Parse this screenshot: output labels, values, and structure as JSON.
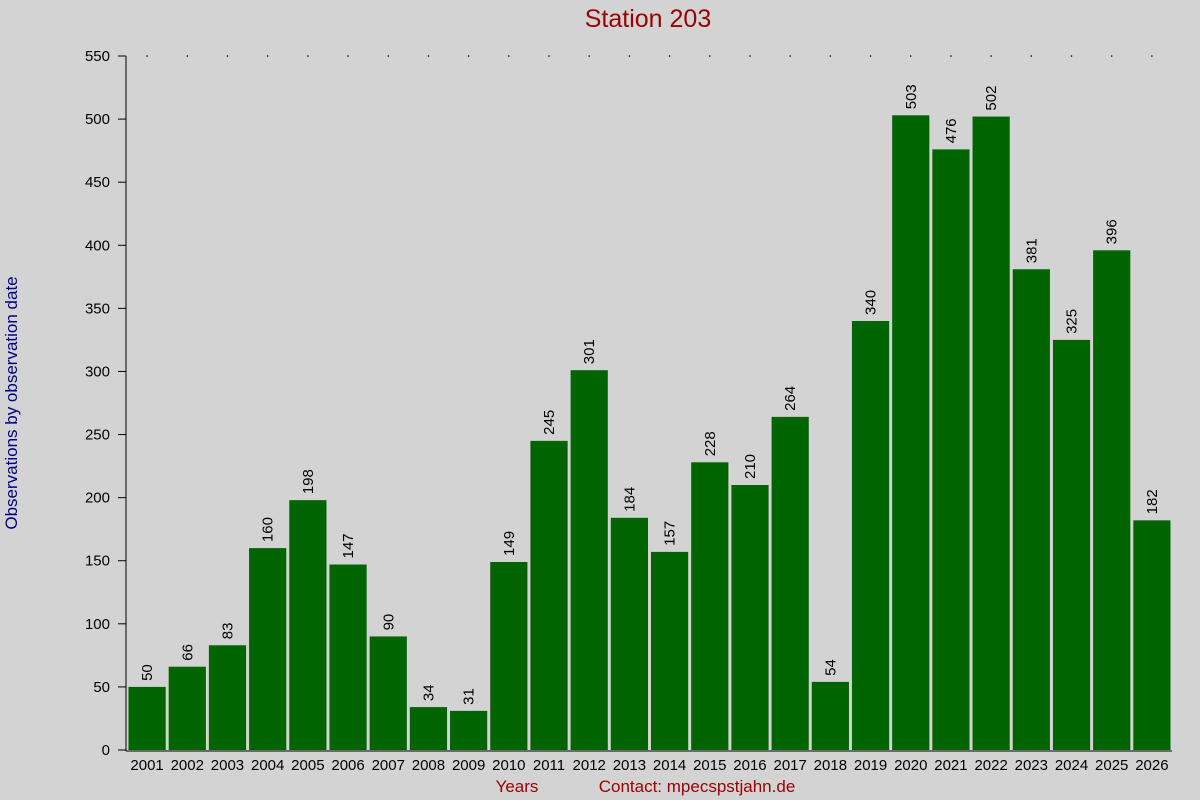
{
  "chart_data": {
    "type": "bar",
    "title": "Station 203",
    "y_label": "Observations by observation date",
    "x_label": "Years",
    "contact": "Contact: mpecspstjahn.de",
    "categories": [
      "2001",
      "2002",
      "2003",
      "2004",
      "2005",
      "2006",
      "2007",
      "2008",
      "2009",
      "2010",
      "2011",
      "2012",
      "2013",
      "2014",
      "2015",
      "2016",
      "2017",
      "2018",
      "2019",
      "2020",
      "2021",
      "2022",
      "2023",
      "2024",
      "2025",
      "2026"
    ],
    "values": [
      50,
      66,
      83,
      160,
      198,
      147,
      90,
      34,
      31,
      149,
      245,
      301,
      184,
      157,
      228,
      210,
      264,
      54,
      340,
      503,
      476,
      502,
      381,
      325,
      396,
      182
    ],
    "color": "#006400",
    "ylim": [
      0,
      550
    ],
    "yticks": [
      0,
      50,
      100,
      150,
      200,
      250,
      300,
      350,
      400,
      450,
      500,
      550
    ]
  }
}
